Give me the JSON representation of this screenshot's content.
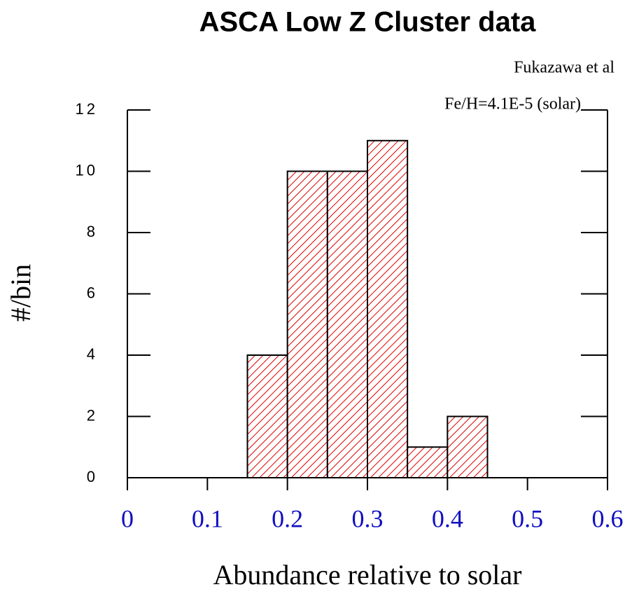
{
  "chart_data": {
    "type": "histogram",
    "title": "ASCA Low Z Cluster data",
    "annotations": [
      "Fukazawa et al",
      "Fe/H=4.1E-5 (solar)"
    ],
    "x_label": "Abundance relative to solar",
    "y_label": "#/bin",
    "bins": [
      0.15,
      0.2,
      0.25,
      0.3,
      0.35,
      0.4,
      0.45
    ],
    "values": [
      4,
      10,
      10,
      11,
      1,
      2
    ],
    "color": "#e00000",
    "xlim": [
      0,
      0.6
    ],
    "xticks": [
      0,
      0.1,
      0.2,
      0.3,
      0.4,
      0.5,
      0.6
    ],
    "ylim": [
      0,
      12
    ],
    "yticks": [
      0,
      2,
      4,
      6,
      8,
      10,
      12
    ]
  }
}
